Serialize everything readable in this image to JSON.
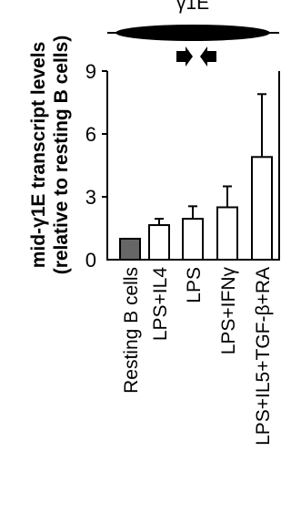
{
  "chart_data": {
    "type": "bar",
    "gene_label": "γ1E",
    "ylabel_line1": "mid-γ1E transcript levels",
    "ylabel_line2": "(relative to resting B cells)",
    "categories": [
      "Resting B cells",
      "LPS+IL4",
      "LPS",
      "LPS+IFNγ",
      "LPS+IL5+TGF-β+RA"
    ],
    "values": [
      1.0,
      1.65,
      1.95,
      2.5,
      4.9
    ],
    "errors": [
      0,
      0.3,
      0.6,
      1.0,
      3.0
    ],
    "yticks": [
      0,
      3,
      6,
      9
    ],
    "ylim": [
      0,
      9
    ],
    "grid": false,
    "colors": {
      "highlight": "#666666",
      "bar": "#ffffff",
      "stroke": "#000000"
    }
  }
}
